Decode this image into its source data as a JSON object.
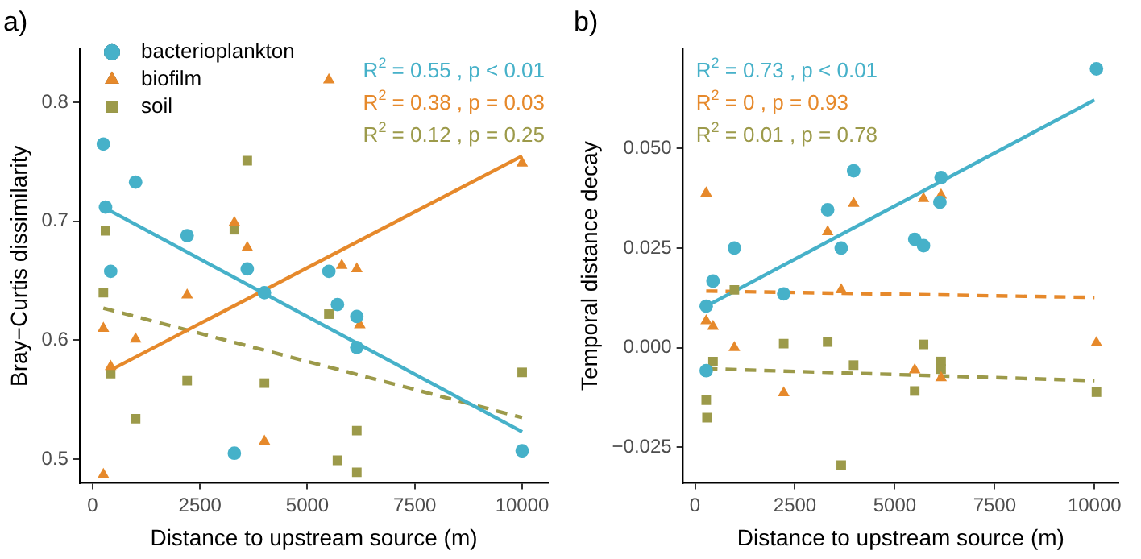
{
  "chart_data": [
    {
      "type": "scatter",
      "title": "a)",
      "xlabel": "Distance to upstream source (m)",
      "ylabel": "Bray−Curtis dissimilarity",
      "xlim": [
        -300,
        10600
      ],
      "xticks": [
        0,
        2500,
        5000,
        7500,
        10000
      ],
      "ylim": [
        0.48,
        0.845
      ],
      "yticks": [
        {
          "value": 0.5,
          "label": "0.5"
        },
        {
          "value": 0.6,
          "label": "0.6"
        },
        {
          "value": 0.7,
          "label": "0.7"
        },
        {
          "value": 0.8,
          "label": "0.8"
        }
      ],
      "grid": false,
      "legend": "top left",
      "annotations": [
        "R$^{2}$ = 0.55 , p < 0.01",
        "R$^{2}$ = 0.38 , p = 0.03",
        "R$^{2}$ = 0.12 , p = 0.25"
      ],
      "series": [
        {
          "name": "bacterioplankton",
          "color": "#46b1c9",
          "marker": "circle",
          "x": [
            250,
            300,
            420,
            1000,
            2200,
            3300,
            3600,
            4000,
            5500,
            5700,
            6150,
            6150,
            10000
          ],
          "values": [
            0.765,
            0.712,
            0.658,
            0.733,
            0.688,
            0.505,
            0.66,
            0.64,
            0.658,
            0.63,
            0.62,
            0.594,
            0.507
          ]
        },
        {
          "name": "biofilm",
          "color": "#e6892b",
          "marker": "triangle",
          "x": [
            250,
            250,
            420,
            1000,
            2200,
            3300,
            3600,
            4000,
            5500,
            5800,
            6150,
            6220,
            10000
          ],
          "values": [
            0.61,
            0.487,
            0.578,
            0.601,
            0.638,
            0.699,
            0.678,
            0.515,
            0.819,
            0.663,
            0.66,
            0.613,
            0.749
          ]
        },
        {
          "name": "soil",
          "color": "#9c9a4a",
          "marker": "square",
          "x": [
            250,
            300,
            420,
            1000,
            2200,
            3300,
            3600,
            4000,
            5500,
            5700,
            6150,
            6150,
            10000
          ],
          "values": [
            0.64,
            0.692,
            0.572,
            0.534,
            0.566,
            0.693,
            0.751,
            0.564,
            0.622,
            0.499,
            0.524,
            0.489,
            0.573
          ]
        },
        {
          "type": "line",
          "color": "#46b1c9",
          "line_style": "solid",
          "x": [
            300,
            10000
          ],
          "values": [
            0.711,
            0.523
          ]
        },
        {
          "type": "line",
          "color": "#e6892b",
          "line_style": "solid",
          "x": [
            420,
            10000
          ],
          "values": [
            0.575,
            0.755
          ]
        },
        {
          "type": "line",
          "color": "#9c9a4a",
          "line_style": "dashed",
          "x": [
            250,
            10000
          ],
          "values": [
            0.627,
            0.535
          ]
        }
      ]
    },
    {
      "type": "scatter",
      "title": "b)",
      "xlabel": "Distance to upstream source (m)",
      "ylabel": "Temporal distance decay",
      "xlim": [
        -300,
        10600
      ],
      "xticks": [
        0,
        2500,
        5000,
        7500,
        10000
      ],
      "ylim": [
        -0.034,
        0.075
      ],
      "yticks": [
        {
          "value": -0.025,
          "label": "−0.025"
        },
        {
          "value": 0,
          "label": "0.000"
        },
        {
          "value": 0.025,
          "label": "0.025"
        },
        {
          "value": 0.05,
          "label": "0.050"
        }
      ],
      "grid": false,
      "annotations": [
        "R$^{2}$ = 0.73 , p < 0.01",
        "R$^{2}$ = 0 , p = 0.93",
        "R$^{2}$ = 0.01 , p = 0.78"
      ],
      "series": [
        {
          "color": "#46b1c9",
          "marker": "circle",
          "x": [
            280,
            450,
            280,
            985,
            2220,
            3320,
            3660,
            3970,
            5500,
            5720,
            6160,
            6130,
            10050
          ],
          "values": [
            -0.0058,
            0.0167,
            0.0104,
            0.025,
            0.0135,
            0.0346,
            0.025,
            0.0444,
            0.0272,
            0.0256,
            0.0427,
            0.0365,
            0.07
          ]
        },
        {
          "color": "#e6892b",
          "marker": "triangle",
          "x": [
            280,
            280,
            450,
            985,
            2220,
            3320,
            3660,
            3970,
            5500,
            5720,
            6160,
            6160,
            10050
          ],
          "values": [
            0.0388,
            0.0067,
            0.0053,
            0.0,
            -0.0114,
            0.0291,
            0.0145,
            0.0362,
            -0.0056,
            0.0374,
            0.0383,
            -0.0076,
            0.0012
          ]
        },
        {
          "color": "#9c9a4a",
          "marker": "square",
          "x": [
            280,
            300,
            450,
            985,
            2220,
            3320,
            3660,
            3970,
            5500,
            5720,
            6160,
            6160,
            10050
          ],
          "values": [
            -0.0132,
            -0.0176,
            -0.0035,
            0.0145,
            0.001,
            0.0014,
            -0.0295,
            -0.0044,
            -0.0109,
            0.0008,
            -0.0035,
            -0.0054,
            -0.0112
          ]
        },
        {
          "type": "line",
          "color": "#46b1c9",
          "line_style": "solid",
          "x": [
            280,
            10000
          ],
          "values": [
            0.0104,
            0.0622
          ]
        },
        {
          "type": "line",
          "color": "#e6892b",
          "line_style": "dashed",
          "x": [
            280,
            10000
          ],
          "values": [
            0.0142,
            0.0126
          ]
        },
        {
          "type": "line",
          "color": "#9c9a4a",
          "line_style": "dashed",
          "x": [
            280,
            10000
          ],
          "values": [
            -0.0053,
            -0.0083
          ]
        }
      ]
    }
  ]
}
